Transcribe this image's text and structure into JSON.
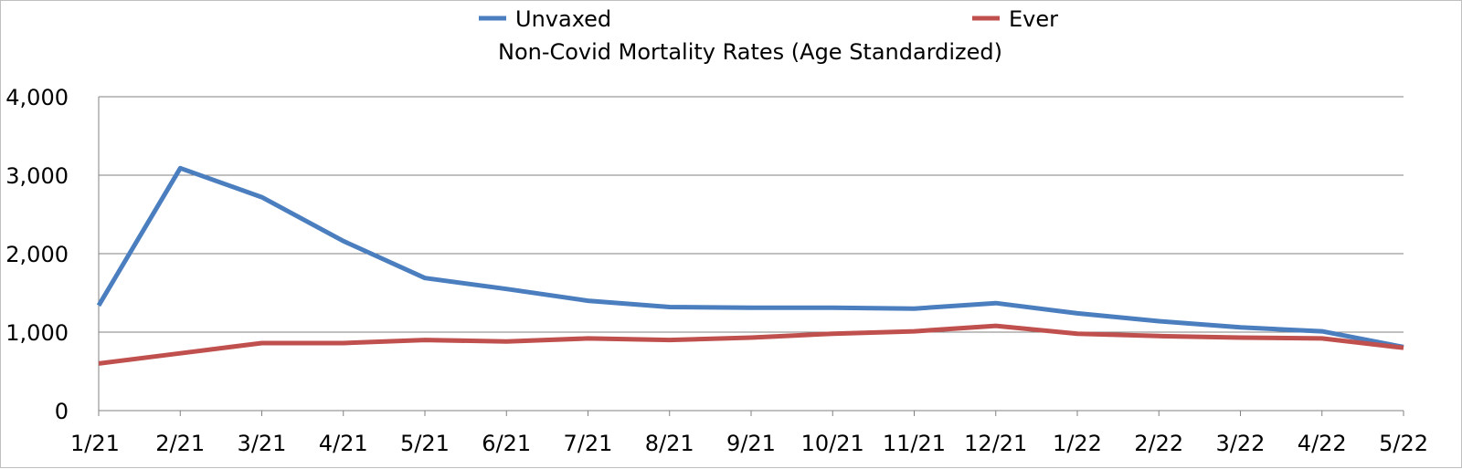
{
  "chart_data": {
    "type": "line",
    "title": "Non-Covid Mortality Rates (Age Standardized)",
    "categories": [
      "1/21",
      "2/21",
      "3/21",
      "4/21",
      "5/21",
      "6/21",
      "7/21",
      "8/21",
      "9/21",
      "10/21",
      "11/21",
      "12/21",
      "1/22",
      "2/22",
      "3/22",
      "4/22",
      "5/22"
    ],
    "series": [
      {
        "name": "Unvaxed",
        "color": "#4a7ebf",
        "values": [
          1340,
          3090,
          2720,
          2160,
          1690,
          1550,
          1400,
          1320,
          1310,
          1310,
          1300,
          1370,
          1240,
          1140,
          1060,
          1010,
          810
        ]
      },
      {
        "name": "Ever",
        "color": "#c0504d",
        "values": [
          600,
          730,
          860,
          860,
          900,
          880,
          920,
          900,
          930,
          980,
          1010,
          1080,
          980,
          950,
          930,
          920,
          800
        ]
      }
    ],
    "ylim": [
      0,
      4000
    ],
    "yticks": [
      0,
      1000,
      2000,
      3000,
      4000
    ],
    "ytick_labels": [
      "0",
      "1,000",
      "2,000",
      "3,000",
      "4,000"
    ],
    "grid": true,
    "legend_position": "top"
  }
}
